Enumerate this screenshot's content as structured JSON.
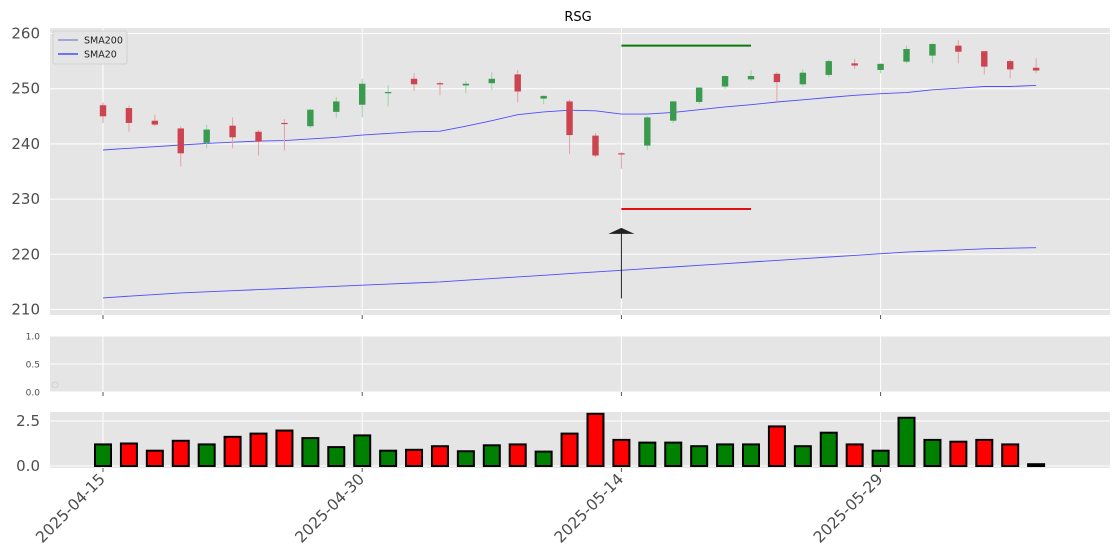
{
  "chart_data": [
    {
      "type": "candlestick",
      "title": "RSG",
      "grid": true,
      "legend": {
        "placement": "top-left",
        "entries": [
          "SMA200",
          "SMA20"
        ]
      },
      "ylim": [
        209,
        261
      ],
      "yticks": [
        210,
        220,
        230,
        240,
        250,
        260
      ],
      "xtick_labels": [
        "2025-04-15",
        "2025-04-30",
        "2025-05-14",
        "2025-05-29"
      ],
      "xtick_index": [
        0,
        10,
        20,
        30
      ],
      "colors": {
        "up": "#3a9a4e",
        "down": "#cc4450",
        "sma": "#4d4dff",
        "panel": "#e5e5e5",
        "upper_line": "#0a7a0a",
        "lower_line": "#dd1111",
        "arrow": "#222222"
      },
      "candles": [
        {
          "o": 247.0,
          "h": 247.5,
          "l": 243.8,
          "c": 245.0
        },
        {
          "o": 246.5,
          "h": 247.0,
          "l": 242.2,
          "c": 243.8
        },
        {
          "o": 244.2,
          "h": 245.3,
          "l": 243.2,
          "c": 243.5
        },
        {
          "o": 242.8,
          "h": 243.2,
          "l": 235.9,
          "c": 238.3
        },
        {
          "o": 240.2,
          "h": 243.5,
          "l": 239.2,
          "c": 242.6
        },
        {
          "o": 243.3,
          "h": 244.8,
          "l": 239.2,
          "c": 241.2
        },
        {
          "o": 242.2,
          "h": 242.5,
          "l": 237.9,
          "c": 240.4
        },
        {
          "o": 243.8,
          "h": 244.5,
          "l": 238.8,
          "c": 243.6
        },
        {
          "o": 243.2,
          "h": 246.3,
          "l": 242.9,
          "c": 246.2
        },
        {
          "o": 245.8,
          "h": 248.5,
          "l": 244.8,
          "c": 247.7
        },
        {
          "o": 247.1,
          "h": 251.8,
          "l": 244.8,
          "c": 250.9
        },
        {
          "o": 249.2,
          "h": 250.6,
          "l": 246.8,
          "c": 249.4
        },
        {
          "o": 251.8,
          "h": 252.8,
          "l": 249.6,
          "c": 250.8
        },
        {
          "o": 251.0,
          "h": 251.3,
          "l": 248.8,
          "c": 250.8
        },
        {
          "o": 250.6,
          "h": 251.4,
          "l": 249.2,
          "c": 250.9
        },
        {
          "o": 251.0,
          "h": 253.0,
          "l": 249.8,
          "c": 251.8
        },
        {
          "o": 252.6,
          "h": 253.4,
          "l": 247.5,
          "c": 249.5
        },
        {
          "o": 248.2,
          "h": 248.8,
          "l": 247.2,
          "c": 248.7
        },
        {
          "o": 247.7,
          "h": 248.0,
          "l": 238.2,
          "c": 241.6
        },
        {
          "o": 241.5,
          "h": 242.0,
          "l": 237.6,
          "c": 237.9
        },
        {
          "o": 238.3,
          "h": 238.5,
          "l": 235.5,
          "c": 238.1
        },
        {
          "o": 239.7,
          "h": 245.0,
          "l": 238.9,
          "c": 244.8
        },
        {
          "o": 244.2,
          "h": 247.8,
          "l": 243.8,
          "c": 247.7
        },
        {
          "o": 247.6,
          "h": 250.3,
          "l": 247.2,
          "c": 250.2
        },
        {
          "o": 250.4,
          "h": 252.4,
          "l": 250.0,
          "c": 252.3
        },
        {
          "o": 251.7,
          "h": 253.4,
          "l": 251.4,
          "c": 252.3
        },
        {
          "o": 252.7,
          "h": 253.0,
          "l": 247.6,
          "c": 251.2
        },
        {
          "o": 250.8,
          "h": 253.5,
          "l": 250.4,
          "c": 252.9
        },
        {
          "o": 252.5,
          "h": 255.3,
          "l": 252.1,
          "c": 255.0
        },
        {
          "o": 254.6,
          "h": 255.4,
          "l": 253.6,
          "c": 254.2
        },
        {
          "o": 253.4,
          "h": 254.6,
          "l": 252.8,
          "c": 254.5
        },
        {
          "o": 254.9,
          "h": 257.8,
          "l": 254.6,
          "c": 257.2
        },
        {
          "o": 256.0,
          "h": 258.2,
          "l": 254.6,
          "c": 258.1
        },
        {
          "o": 257.8,
          "h": 258.8,
          "l": 254.6,
          "c": 256.7
        },
        {
          "o": 256.8,
          "h": 256.8,
          "l": 252.6,
          "c": 254.0
        },
        {
          "o": 255.0,
          "h": 255.3,
          "l": 251.9,
          "c": 253.5
        },
        {
          "o": 253.8,
          "h": 255.5,
          "l": 252.8,
          "c": 253.3
        }
      ],
      "sma20": [
        238.9,
        239.2,
        239.5,
        239.8,
        240.1,
        240.3,
        240.5,
        240.6,
        240.9,
        241.2,
        241.6,
        241.9,
        242.2,
        242.3,
        243.2,
        244.2,
        245.3,
        245.8,
        246.1,
        246.0,
        245.4,
        245.4,
        245.7,
        246.2,
        246.7,
        247.1,
        247.6,
        248.0,
        248.4,
        248.8,
        249.1,
        249.3,
        249.8,
        250.1,
        250.4,
        250.4,
        250.6
      ],
      "sma200": [
        212.1,
        212.4,
        212.7,
        213.0,
        213.2,
        213.4,
        213.6,
        213.8,
        214.0,
        214.2,
        214.4,
        214.6,
        214.8,
        215.0,
        215.3,
        215.6,
        215.9,
        216.2,
        216.5,
        216.8,
        217.1,
        217.4,
        217.7,
        218.0,
        218.3,
        218.6,
        218.9,
        219.2,
        219.5,
        219.8,
        220.1,
        220.4,
        220.6,
        220.8,
        221.0,
        221.1,
        221.2
      ],
      "horizontal_lines": [
        {
          "y": 257.8,
          "x_start_index": 20,
          "x_end_index": 25,
          "color": "#0a7a0a"
        },
        {
          "y": 228.2,
          "x_start_index": 20,
          "x_end_index": 25,
          "color": "#dd1111"
        }
      ],
      "arrow": {
        "x_index": 20,
        "y_start": 212.0,
        "y_end": 224.6
      }
    },
    {
      "type": "line",
      "title": "",
      "ylim": [
        0,
        1
      ],
      "yticks": [
        "0.0",
        "0.5",
        "1.0"
      ],
      "series": []
    },
    {
      "type": "bar",
      "title": "",
      "ylim": [
        0,
        3.0
      ],
      "yticks": [
        "0.0",
        "2.5"
      ],
      "ytick_values": [
        0,
        2.5
      ],
      "values": [
        1.2,
        1.25,
        0.85,
        1.4,
        1.2,
        1.62,
        1.8,
        1.97,
        1.55,
        1.05,
        1.7,
        0.85,
        0.9,
        1.1,
        0.82,
        1.15,
        1.2,
        0.8,
        1.8,
        2.9,
        1.45,
        1.3,
        1.3,
        1.1,
        1.2,
        1.2,
        2.2,
        1.1,
        1.85,
        1.2,
        0.85,
        2.68,
        1.45,
        1.35,
        1.45,
        1.2,
        0.1
      ],
      "colors_by_bar": [
        "up",
        "down",
        "down",
        "down",
        "up",
        "down",
        "down",
        "down",
        "up",
        "up",
        "up",
        "up",
        "down",
        "down",
        "up",
        "up",
        "down",
        "up",
        "down",
        "down",
        "down",
        "up",
        "up",
        "up",
        "up",
        "up",
        "down",
        "up",
        "up",
        "down",
        "up",
        "up",
        "up",
        "down",
        "down",
        "down",
        "down"
      ],
      "colors": {
        "up": "#008000",
        "down": "#ff0000"
      }
    }
  ]
}
